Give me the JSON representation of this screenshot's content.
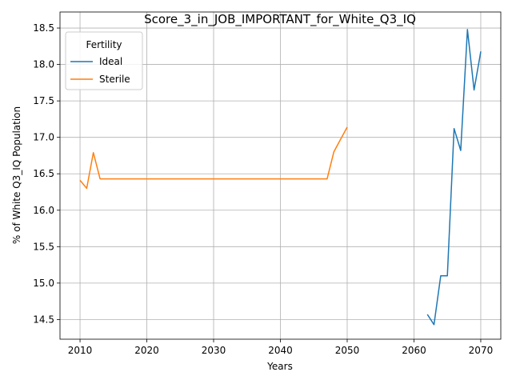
{
  "chart_data": {
    "type": "line",
    "title": "Score_3_in_JOB_IMPORTANT_for_White_Q3_IQ",
    "xlabel": "Years",
    "ylabel": "% of White Q3_IQ Population",
    "xlim": [
      2007,
      2073
    ],
    "ylim": [
      14.23,
      18.72
    ],
    "xticks": [
      2010,
      2020,
      2030,
      2040,
      2050,
      2060,
      2070
    ],
    "yticks": [
      14.5,
      15.0,
      15.5,
      16.0,
      16.5,
      17.0,
      17.5,
      18.0,
      18.5
    ],
    "grid": true,
    "legend": {
      "title": "Fertility",
      "position": "top-left"
    },
    "series": [
      {
        "name": "Ideal",
        "color": "#1f77b4",
        "x": [
          2062,
          2063,
          2064,
          2065,
          2066,
          2067,
          2068,
          2069,
          2070
        ],
        "y": [
          14.57,
          14.43,
          15.1,
          15.1,
          17.12,
          16.82,
          18.48,
          17.65,
          18.18
        ]
      },
      {
        "name": "Sterile",
        "color": "#ff7f0e",
        "x": [
          2010,
          2011,
          2012,
          2013,
          2014,
          2015,
          2016,
          2017,
          2018,
          2019,
          2020,
          2021,
          2022,
          2023,
          2024,
          2025,
          2026,
          2027,
          2028,
          2029,
          2030,
          2031,
          2032,
          2033,
          2034,
          2035,
          2036,
          2037,
          2038,
          2039,
          2040,
          2041,
          2042,
          2043,
          2044,
          2045,
          2046,
          2047,
          2048,
          2049,
          2050
        ],
        "y": [
          16.41,
          16.3,
          16.79,
          16.43,
          16.43,
          16.43,
          16.43,
          16.43,
          16.43,
          16.43,
          16.43,
          16.43,
          16.43,
          16.43,
          16.43,
          16.43,
          16.43,
          16.43,
          16.43,
          16.43,
          16.43,
          16.43,
          16.43,
          16.43,
          16.43,
          16.43,
          16.43,
          16.43,
          16.43,
          16.43,
          16.43,
          16.43,
          16.43,
          16.43,
          16.43,
          16.43,
          16.43,
          16.43,
          16.8,
          16.97,
          17.14
        ]
      }
    ]
  }
}
